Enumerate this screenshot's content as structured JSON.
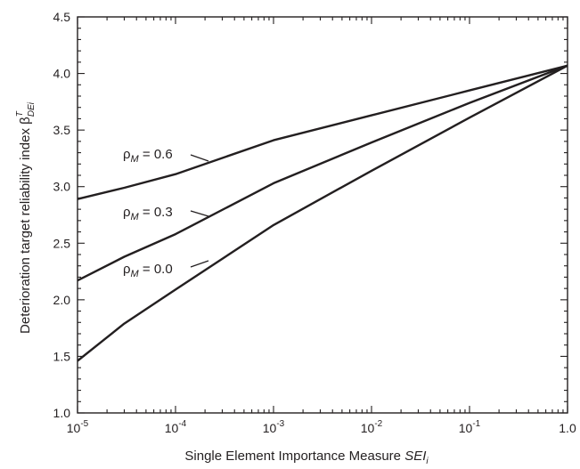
{
  "chart_data": {
    "type": "line",
    "title": "",
    "xscale": "log",
    "xlim": [
      1e-05,
      1.0
    ],
    "ylim": [
      1.0,
      4.5
    ],
    "grid": false,
    "xlabel": {
      "main": "Single Element Importance Measure ",
      "italic": "SEI",
      "sub": "i"
    },
    "ylabel": {
      "main": "Deterioration target reliability index β",
      "sup": "T",
      "sub": "DEi"
    },
    "x_ticks": [
      {
        "value": 1e-05,
        "base": "10",
        "exp": "-5"
      },
      {
        "value": 0.0001,
        "base": "10",
        "exp": "-4"
      },
      {
        "value": 0.001,
        "base": "10",
        "exp": "-3"
      },
      {
        "value": 0.01,
        "base": "10",
        "exp": "-2"
      },
      {
        "value": 0.1,
        "base": "10",
        "exp": "-1"
      },
      {
        "value": 1.0,
        "base": "1.0",
        "exp": ""
      }
    ],
    "y_ticks": [
      {
        "value": 1.0,
        "label": "1.0"
      },
      {
        "value": 1.5,
        "label": "1.5"
      },
      {
        "value": 2.0,
        "label": "2.0"
      },
      {
        "value": 2.5,
        "label": "2.5"
      },
      {
        "value": 3.0,
        "label": "3.0"
      },
      {
        "value": 3.5,
        "label": "3.5"
      },
      {
        "value": 4.0,
        "label": "4.0"
      },
      {
        "value": 4.5,
        "label": "4.5"
      }
    ],
    "series": [
      {
        "label": {
          "symbol": "ρ",
          "sub": "M",
          "text": " = 0.6"
        },
        "x": [
          1e-05,
          3e-05,
          0.0001,
          0.001,
          0.01,
          0.1,
          1.0
        ],
        "y": [
          2.89,
          2.99,
          3.11,
          3.41,
          3.63,
          3.85,
          4.07
        ]
      },
      {
        "label": {
          "symbol": "ρ",
          "sub": "M",
          "text": " = 0.3"
        },
        "x": [
          1e-05,
          3e-05,
          0.0001,
          0.001,
          0.01,
          0.1,
          1.0
        ],
        "y": [
          2.17,
          2.38,
          2.58,
          3.03,
          3.39,
          3.74,
          4.07
        ]
      },
      {
        "label": {
          "symbol": "ρ",
          "sub": "M",
          "text": " = 0.0"
        },
        "x": [
          1e-05,
          3e-05,
          0.0001,
          0.001,
          0.01,
          0.1,
          1.0
        ],
        "y": [
          1.46,
          1.79,
          2.09,
          2.66,
          3.14,
          3.61,
          4.07
        ]
      }
    ]
  }
}
